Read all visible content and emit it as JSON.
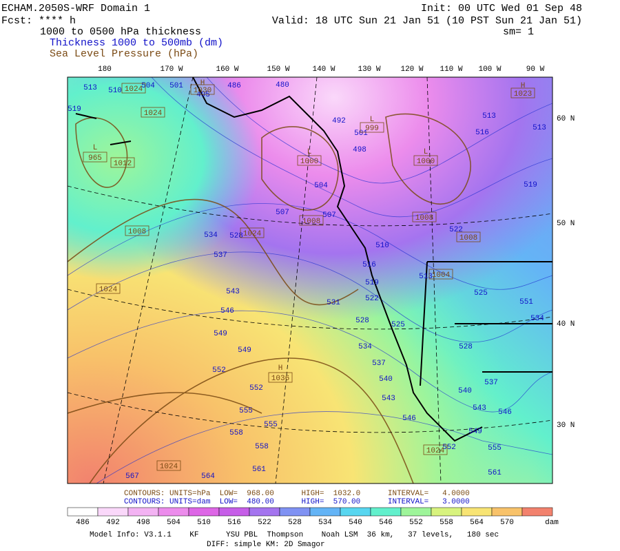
{
  "header": {
    "model": "ECHAM.2050S-WRF Domain 1",
    "forecast": "Fcst: **** h",
    "field": "1000 to 0500 hPa thickness",
    "thickness_legend": "Thickness 1000 to 500mb (dm)",
    "slp_legend": "Sea Level Pressure (hPa)",
    "init": "Init: 00 UTC Wed 01 Sep 48",
    "valid": "Valid: 18 UTC Sun 21 Jan 51 (10 PST Sun 21 Jan 51)",
    "smoothing": "sm= 1"
  },
  "map": {
    "longitude_labels": [
      "180",
      "170 W",
      "160 W",
      "150 W",
      "140 W",
      "130 W",
      "120 W",
      "110 W",
      "100 W",
      "90 W"
    ],
    "latitude_labels": [
      "60 N",
      "50 N",
      "40 N",
      "30 N"
    ],
    "thickness_labels": [
      "513",
      "510",
      "504",
      "501",
      "495",
      "486",
      "480",
      "519",
      "492",
      "501",
      "498",
      "513",
      "516",
      "513",
      "519",
      "504",
      "507",
      "507",
      "534",
      "528",
      "537",
      "522",
      "510",
      "516",
      "519",
      "513",
      "525",
      "543",
      "531",
      "522",
      "551",
      "546",
      "534",
      "528",
      "525",
      "549",
      "549",
      "534",
      "528",
      "552",
      "537",
      "540",
      "537",
      "552",
      "540",
      "543",
      "555",
      "555",
      "543",
      "546",
      "546",
      "558",
      "549",
      "558",
      "552",
      "555",
      "561",
      "567",
      "564",
      "561"
    ],
    "pressure_labels": [
      "1024",
      "1030",
      "999",
      "965",
      "1012",
      "1000",
      "1000",
      "1024",
      "1008",
      "1024",
      "1008",
      "1008",
      "1008",
      "1004",
      "1024",
      "1036",
      "1024",
      "1024",
      "1023"
    ],
    "pressure_centers": [
      "H",
      "L",
      "L",
      "L",
      "L",
      "H",
      "H"
    ]
  },
  "footer": {
    "slp_contours": "CONTOURS: UNITS=hPa  LOW=  968.00      HIGH=  1032.0      INTERVAL=   4.0000",
    "thk_contours": "CONTOURS: UNITS=dam  LOW=  480.00      HIGH=  570.00      INTERVAL=   3.0000",
    "model_info": "Model Info: V3.1.1    KF      YSU PBL  Thompson    Noah LSM  36 km,   37 levels,   180 sec",
    "diffusion": "DIFF: simple KM: 2D Smagor"
  },
  "colorbar": {
    "levels": [
      486,
      492,
      498,
      504,
      510,
      516,
      522,
      528,
      534,
      540,
      546,
      552,
      558,
      564,
      570
    ],
    "unit": "dam",
    "colors": [
      "#ffffff",
      "#fad8fa",
      "#f3b3f3",
      "#ec8cec",
      "#dd66e6",
      "#c65ee8",
      "#a474ef",
      "#8092f3",
      "#64b4f6",
      "#58d6f0",
      "#62f0cc",
      "#9ef59a",
      "#d8f37e",
      "#f8e474",
      "#f8c26a",
      "#f2826e"
    ]
  }
}
